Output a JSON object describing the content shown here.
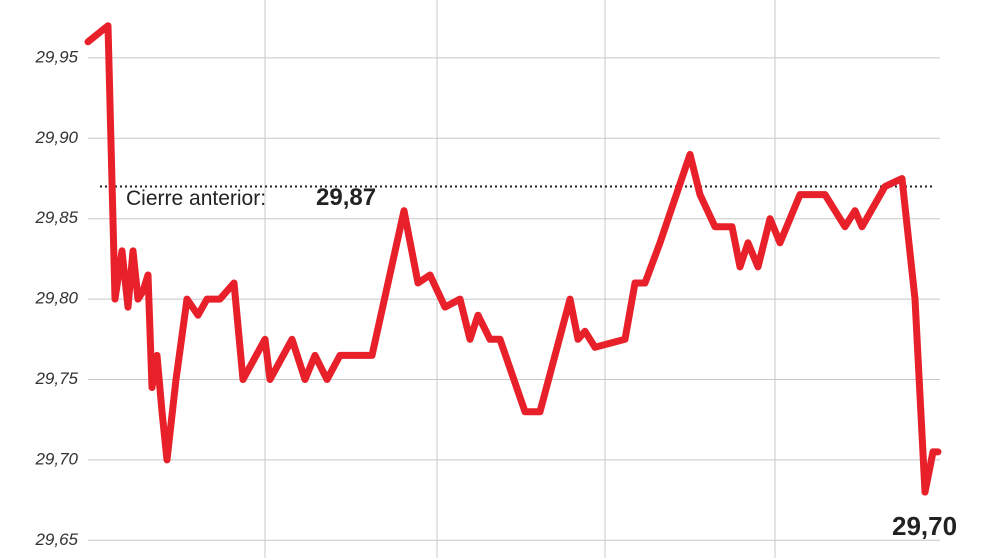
{
  "chart_data": {
    "type": "line",
    "x": [
      88,
      108,
      115,
      122,
      128,
      133,
      138,
      143,
      148,
      152,
      157,
      162,
      167,
      176,
      187,
      198,
      207,
      220,
      234,
      243,
      265,
      270,
      292,
      305,
      315,
      327,
      340,
      372,
      404,
      418,
      430,
      445,
      460,
      470,
      478,
      490,
      500,
      525,
      540,
      570,
      578,
      585,
      595,
      625,
      635,
      645,
      660,
      690,
      700,
      715,
      732,
      740,
      748,
      758,
      770,
      780,
      800,
      825,
      845,
      855,
      862,
      885,
      902,
      915,
      925,
      933,
      938
    ],
    "values": [
      29.96,
      29.97,
      29.8,
      29.83,
      29.795,
      29.83,
      29.8,
      29.805,
      29.815,
      29.745,
      29.765,
      29.73,
      29.7,
      29.75,
      29.8,
      29.79,
      29.8,
      29.8,
      29.81,
      29.75,
      29.775,
      29.75,
      29.775,
      29.75,
      29.765,
      29.75,
      29.765,
      29.765,
      29.855,
      29.81,
      29.815,
      29.795,
      29.8,
      29.775,
      29.79,
      29.775,
      29.775,
      29.73,
      29.73,
      29.8,
      29.775,
      29.78,
      29.77,
      29.775,
      29.81,
      29.81,
      29.835,
      29.89,
      29.865,
      29.845,
      29.845,
      29.82,
      29.835,
      29.82,
      29.85,
      29.835,
      29.865,
      29.865,
      29.845,
      29.855,
      29.845,
      29.87,
      29.875,
      29.8,
      29.68,
      29.705,
      29.705
    ],
    "color": "#e8202a",
    "xlim": [
      88,
      940
    ],
    "ylim": [
      29.639,
      29.986
    ],
    "yticks": [
      {
        "value": 29.65,
        "label": "29,65"
      },
      {
        "value": 29.7,
        "label": "29,70"
      },
      {
        "value": 29.75,
        "label": "29,75"
      },
      {
        "value": 29.8,
        "label": "29,80"
      },
      {
        "value": 29.85,
        "label": "29,85"
      },
      {
        "value": 29.9,
        "label": "29,90"
      },
      {
        "value": 29.95,
        "label": "29,95"
      }
    ],
    "grid": true,
    "reference": {
      "label": "Cierre anterior:",
      "value": 29.87,
      "value_label": "29,87"
    },
    "end_label": "29,70"
  }
}
